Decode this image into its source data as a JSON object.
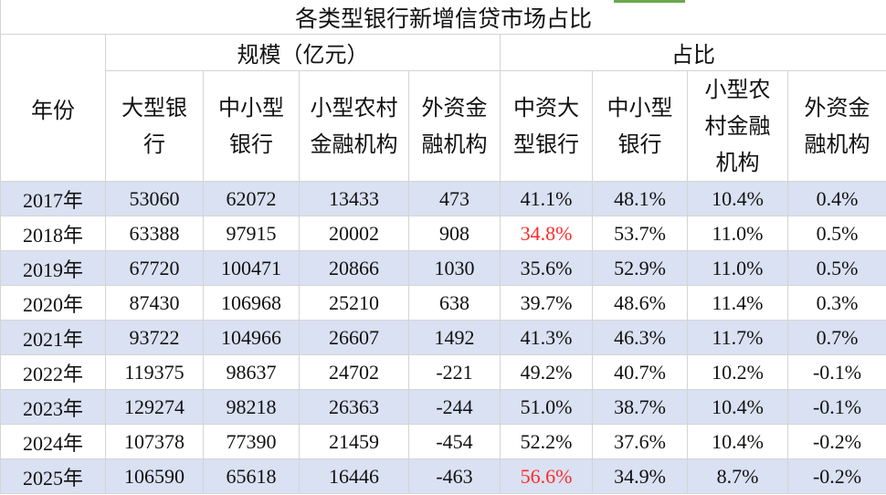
{
  "title": "各类型银行新增信贷市场占比",
  "header": {
    "year_label": "年份",
    "groups": [
      "规模（亿元）",
      "占比"
    ],
    "columns": [
      "大型银行",
      "中小型银行",
      "小型农村金融机构",
      "外资金融机构",
      "中资大型银行",
      "中小型银行",
      "小型农村金融机构",
      "外资金融机构"
    ]
  },
  "rows": [
    [
      "2017年",
      "53060",
      "62072",
      "13433",
      "473",
      "41.1%",
      "48.1%",
      "10.4%",
      "0.4%"
    ],
    [
      "2018年",
      "63388",
      "97915",
      "20002",
      "908",
      {
        "text": "34.8%",
        "color": "#ff2a2a"
      },
      "53.7%",
      "11.0%",
      "0.5%"
    ],
    [
      "2019年",
      "67720",
      "100471",
      "20866",
      "1030",
      "35.6%",
      "52.9%",
      "11.0%",
      "0.5%"
    ],
    [
      "2020年",
      "87430",
      "106968",
      "25210",
      "638",
      "39.7%",
      "48.6%",
      "11.4%",
      "0.3%"
    ],
    [
      "2021年",
      "93722",
      "104966",
      "26607",
      "1492",
      "41.3%",
      "46.3%",
      "11.7%",
      "0.7%"
    ],
    [
      "2022年",
      "119375",
      "98637",
      "24702",
      "-221",
      "49.2%",
      "40.7%",
      "10.2%",
      "-0.1%"
    ],
    [
      "2023年",
      "129274",
      "98218",
      "26363",
      "-244",
      "51.0%",
      "38.7%",
      "10.4%",
      "-0.1%"
    ],
    [
      "2024年",
      "107378",
      "77390",
      "21459",
      "-454",
      "52.2%",
      "37.6%",
      "10.4%",
      "-0.2%"
    ],
    [
      "2025年",
      "106590",
      "65618",
      "16446",
      "-463",
      {
        "text": "56.6%",
        "color": "#ff2a2a"
      },
      "34.9%",
      "8.7%",
      "-0.2%"
    ]
  ]
}
